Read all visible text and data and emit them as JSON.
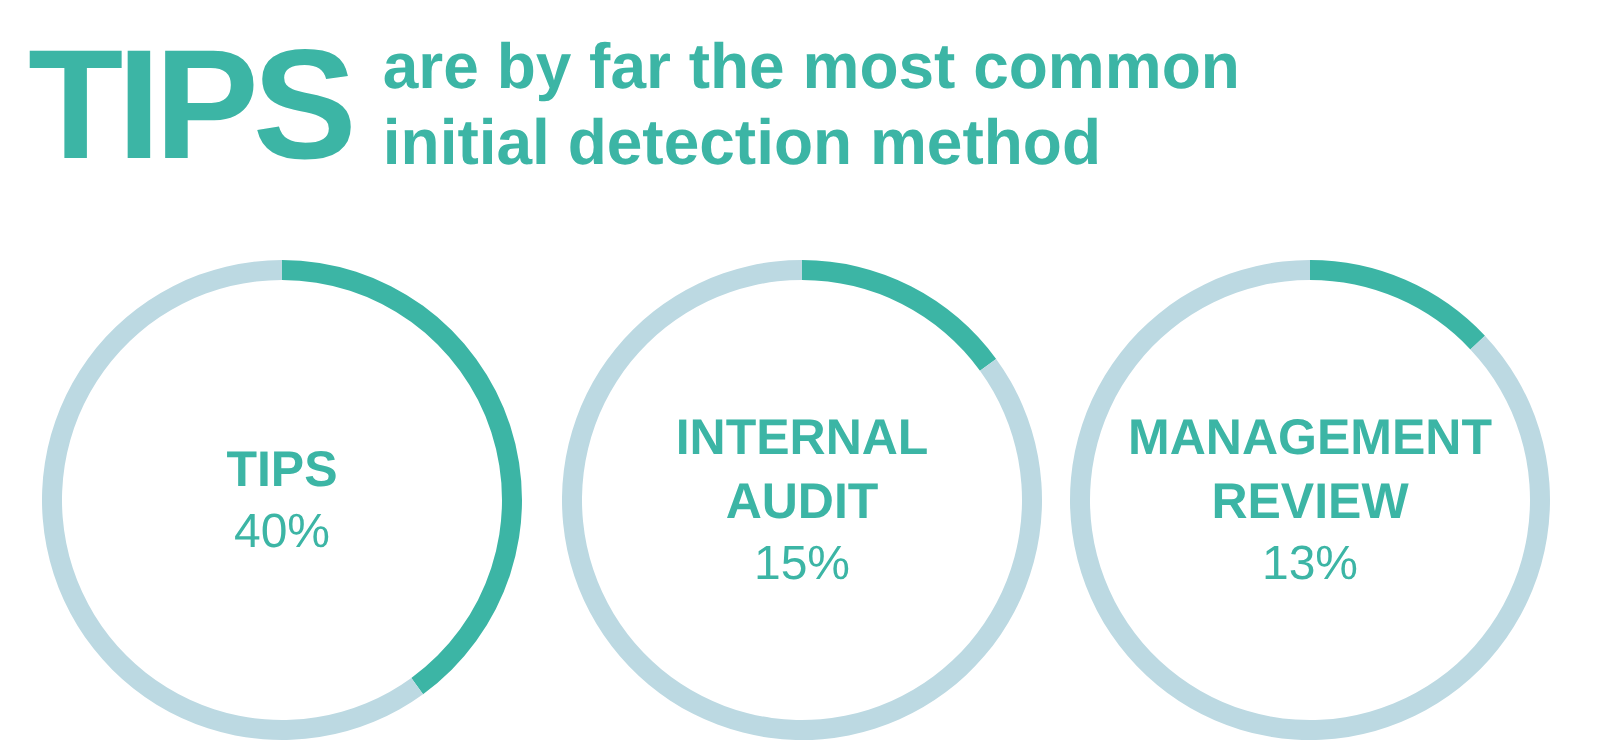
{
  "chart_data": [
    {
      "type": "donut",
      "title": "TIPS are by far the most common initial detection method",
      "categories": [
        "TIPS",
        null
      ],
      "values": [
        40,
        60
      ],
      "colors": [
        "#3cb5a5",
        "#bcd9e2"
      ],
      "value_labels": [
        "40%",
        null
      ]
    },
    {
      "type": "donut",
      "categories": [
        "INTERNAL AUDIT",
        null
      ],
      "values": [
        15,
        85
      ],
      "colors": [
        "#3cb5a5",
        "#bcd9e2"
      ],
      "value_labels": [
        "15%",
        null
      ]
    },
    {
      "type": "donut",
      "categories": [
        "MANAGEMENT REVIEW",
        null
      ],
      "values": [
        13,
        87
      ],
      "colors": [
        "#3cb5a5",
        "#bcd9e2"
      ],
      "value_labels": [
        "13%",
        null
      ]
    }
  ]
}
